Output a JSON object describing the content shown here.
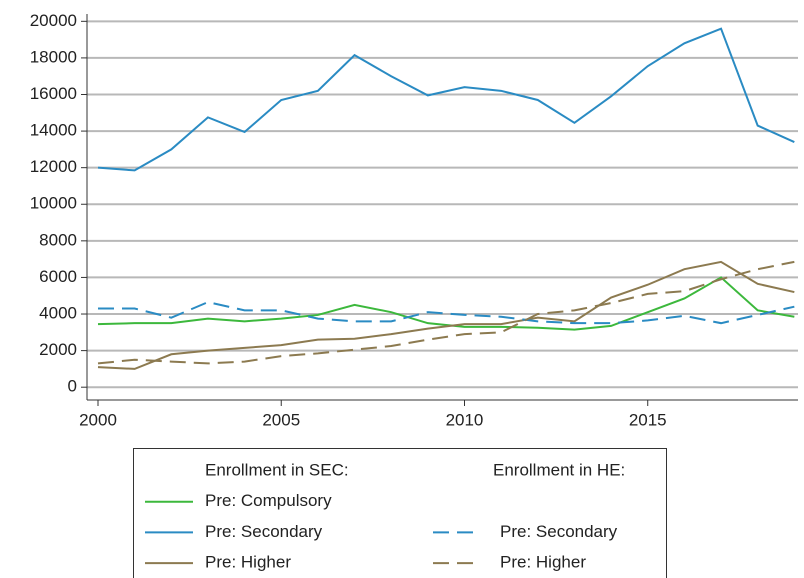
{
  "chart_data": {
    "type": "line",
    "x": [
      2000,
      2001,
      2002,
      2003,
      2004,
      2005,
      2006,
      2007,
      2008,
      2009,
      2010,
      2011,
      2012,
      2013,
      2014,
      2015,
      2016,
      2017,
      2018,
      2019
    ],
    "xlim": [
      1999.7,
      2019.1
    ],
    "xticks": [
      2000,
      2005,
      2010,
      2015
    ],
    "ylim": [
      -700,
      20400
    ],
    "yticks": [
      0,
      2000,
      4000,
      6000,
      8000,
      10000,
      12000,
      14000,
      16000,
      18000,
      20000
    ],
    "grid": true,
    "legend_titles": {
      "solid": "Enrollment in SEC:",
      "dashed": "Enrollment in HE:"
    },
    "series": [
      {
        "name": "Pre: Compulsory",
        "color": "#3cb83c",
        "linestyle": "solid",
        "values": [
          3450,
          3500,
          3500,
          3750,
          3600,
          3750,
          3950,
          4500,
          4100,
          3500,
          3300,
          3300,
          3250,
          3150,
          3350,
          4100,
          4850,
          6000,
          4200,
          3850
        ]
      },
      {
        "name": "Pre: Secondary",
        "color": "#2a8bc3",
        "linestyle": "solid",
        "values": [
          12000,
          11850,
          13000,
          14750,
          13950,
          15700,
          16200,
          18150,
          17000,
          15950,
          16400,
          16200,
          15700,
          14450,
          15900,
          17550,
          18800,
          19600,
          14300,
          13400
        ]
      },
      {
        "name": "Pre: Higher",
        "color": "#8c7a50",
        "linestyle": "solid",
        "values": [
          1100,
          1000,
          1800,
          2000,
          2150,
          2300,
          2600,
          2650,
          2900,
          3200,
          3450,
          3450,
          3800,
          3600,
          4900,
          5600,
          6450,
          6850,
          5650,
          5200
        ]
      },
      {
        "name": "Pre: Secondary",
        "color": "#2a8bc3",
        "linestyle": "dashed",
        "values": [
          4300,
          4300,
          3800,
          4650,
          4200,
          4200,
          3750,
          3600,
          3600,
          4100,
          3950,
          3850,
          3600,
          3500,
          3500,
          3650,
          3900,
          3500,
          3950,
          4400
        ]
      },
      {
        "name": "Pre: Higher",
        "color": "#8c7a50",
        "linestyle": "dashed",
        "values": [
          1300,
          1500,
          1400,
          1300,
          1400,
          1700,
          1850,
          2050,
          2250,
          2600,
          2900,
          3000,
          4000,
          4200,
          4600,
          5100,
          5250,
          5900,
          6450,
          6850
        ]
      }
    ]
  }
}
